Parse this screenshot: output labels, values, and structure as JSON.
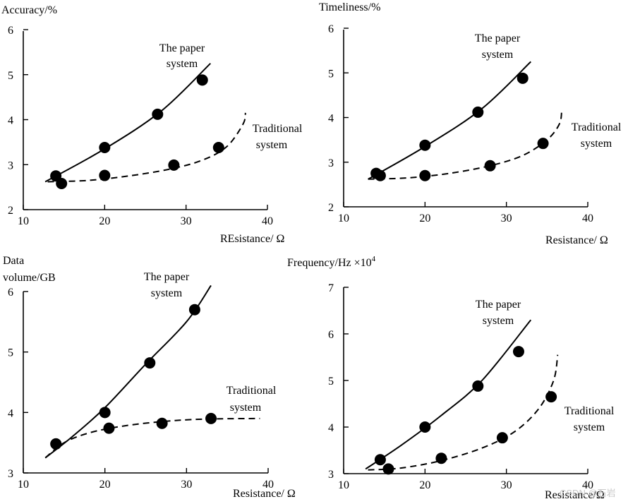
{
  "chart_data": [
    {
      "type": "line",
      "ylabel": "Accuracy/%",
      "xlabel": "REsistance/ Ω",
      "xlim": [
        10,
        40
      ],
      "ylim": [
        2,
        6
      ],
      "xticks": [
        "10",
        "20",
        "30",
        "40"
      ],
      "yticks": [
        "2",
        "3",
        "4",
        "5",
        "6"
      ],
      "series": [
        {
          "name": "The paper system",
          "style": "solid",
          "points": [
            [
              14,
              2.75
            ],
            [
              20,
              3.38
            ],
            [
              26.5,
              4.12
            ],
            [
              32,
              4.88
            ]
          ],
          "trend": [
            [
              12.7,
              2.62
            ],
            [
              20,
              3.35
            ],
            [
              27,
              4.2
            ],
            [
              33,
              5.25
            ]
          ]
        },
        {
          "name": "Traditional system",
          "style": "dashed",
          "points": [
            [
              14.7,
              2.58
            ],
            [
              20,
              2.76
            ],
            [
              28.5,
              2.99
            ],
            [
              34,
              3.38
            ]
          ],
          "trend": [
            [
              13,
              2.62
            ],
            [
              18,
              2.65
            ],
            [
              23,
              2.75
            ],
            [
              28,
              2.9
            ],
            [
              32,
              3.1
            ],
            [
              35,
              3.4
            ],
            [
              37,
              3.9
            ],
            [
              37.3,
              4.15
            ]
          ]
        }
      ]
    },
    {
      "type": "line",
      "ylabel": "Timeliness/%",
      "xlabel": "Resistance/ Ω",
      "xlim": [
        10,
        40
      ],
      "ylim": [
        2,
        6
      ],
      "xticks": [
        "10",
        "20",
        "30",
        "40"
      ],
      "yticks": [
        "2",
        "3",
        "4",
        "5",
        "6"
      ],
      "series": [
        {
          "name": "The paper system",
          "style": "solid",
          "points": [
            [
              14,
              2.75
            ],
            [
              20,
              3.38
            ],
            [
              26.5,
              4.12
            ],
            [
              32,
              4.88
            ]
          ],
          "trend": [
            [
              13,
              2.62
            ],
            [
              20,
              3.35
            ],
            [
              27,
              4.2
            ],
            [
              33,
              5.25
            ]
          ]
        },
        {
          "name": "Traditional system",
          "style": "dashed",
          "points": [
            [
              14.5,
              2.7
            ],
            [
              20,
              2.7
            ],
            [
              28,
              2.92
            ],
            [
              34.5,
              3.42
            ]
          ],
          "trend": [
            [
              13,
              2.62
            ],
            [
              18,
              2.65
            ],
            [
              23,
              2.75
            ],
            [
              28,
              2.92
            ],
            [
              32,
              3.15
            ],
            [
              35,
              3.5
            ],
            [
              36.5,
              3.85
            ],
            [
              36.8,
              4.15
            ]
          ]
        }
      ]
    },
    {
      "type": "line",
      "ylabel": "Data volume/GB",
      "xlabel": "Resistance/ Ω",
      "xlim": [
        10,
        40
      ],
      "ylim": [
        3,
        6
      ],
      "xticks": [
        "10",
        "20",
        "30",
        "40"
      ],
      "yticks": [
        "3",
        "4",
        "5",
        "6"
      ],
      "series": [
        {
          "name": "The paper system",
          "style": "solid",
          "points": [
            [
              14,
              3.48
            ],
            [
              20,
              4.0
            ],
            [
              25.5,
              4.82
            ],
            [
              31,
              5.7
            ]
          ],
          "trend": [
            [
              12.7,
              3.25
            ],
            [
              16,
              3.6
            ],
            [
              20,
              4.08
            ],
            [
              25,
              4.8
            ],
            [
              30,
              5.5
            ],
            [
              33,
              6.1
            ]
          ]
        },
        {
          "name": "Traditional system",
          "style": "dashed",
          "points": [
            [
              14,
              3.48
            ],
            [
              20.5,
              3.74
            ],
            [
              27,
              3.82
            ],
            [
              33,
              3.9
            ]
          ],
          "trend": [
            [
              12.7,
              3.25
            ],
            [
              15,
              3.5
            ],
            [
              18,
              3.66
            ],
            [
              22,
              3.77
            ],
            [
              27,
              3.85
            ],
            [
              32,
              3.89
            ],
            [
              39,
              3.9
            ]
          ]
        }
      ]
    },
    {
      "type": "line",
      "ylabel": "Frequency/Hz ×10⁴",
      "xlabel": "Resistance/ Ω",
      "xlim": [
        10,
        40
      ],
      "ylim": [
        3,
        7
      ],
      "xticks": [
        "10",
        "20",
        "30",
        "40"
      ],
      "yticks": [
        "3",
        "4",
        "5",
        "6",
        "7"
      ],
      "series": [
        {
          "name": "The paper system",
          "style": "solid",
          "points": [
            [
              14.5,
              3.3
            ],
            [
              20,
              4.0
            ],
            [
              26.5,
              4.88
            ],
            [
              31.5,
              5.62
            ]
          ],
          "trend": [
            [
              12.7,
              3.1
            ],
            [
              17,
              3.6
            ],
            [
              22,
              4.25
            ],
            [
              27,
              5.0
            ],
            [
              33,
              6.3
            ]
          ]
        },
        {
          "name": "Traditional system",
          "style": "dashed",
          "points": [
            [
              15.5,
              3.1
            ],
            [
              22,
              3.33
            ],
            [
              29.5,
              3.77
            ],
            [
              35.5,
              4.65
            ]
          ],
          "trend": [
            [
              13,
              3.08
            ],
            [
              17,
              3.12
            ],
            [
              22,
              3.28
            ],
            [
              27,
              3.55
            ],
            [
              31,
              3.9
            ],
            [
              34,
              4.4
            ],
            [
              35.8,
              5.0
            ],
            [
              36.3,
              5.55
            ]
          ]
        }
      ]
    }
  ],
  "watermark": "CSDN @石岩"
}
